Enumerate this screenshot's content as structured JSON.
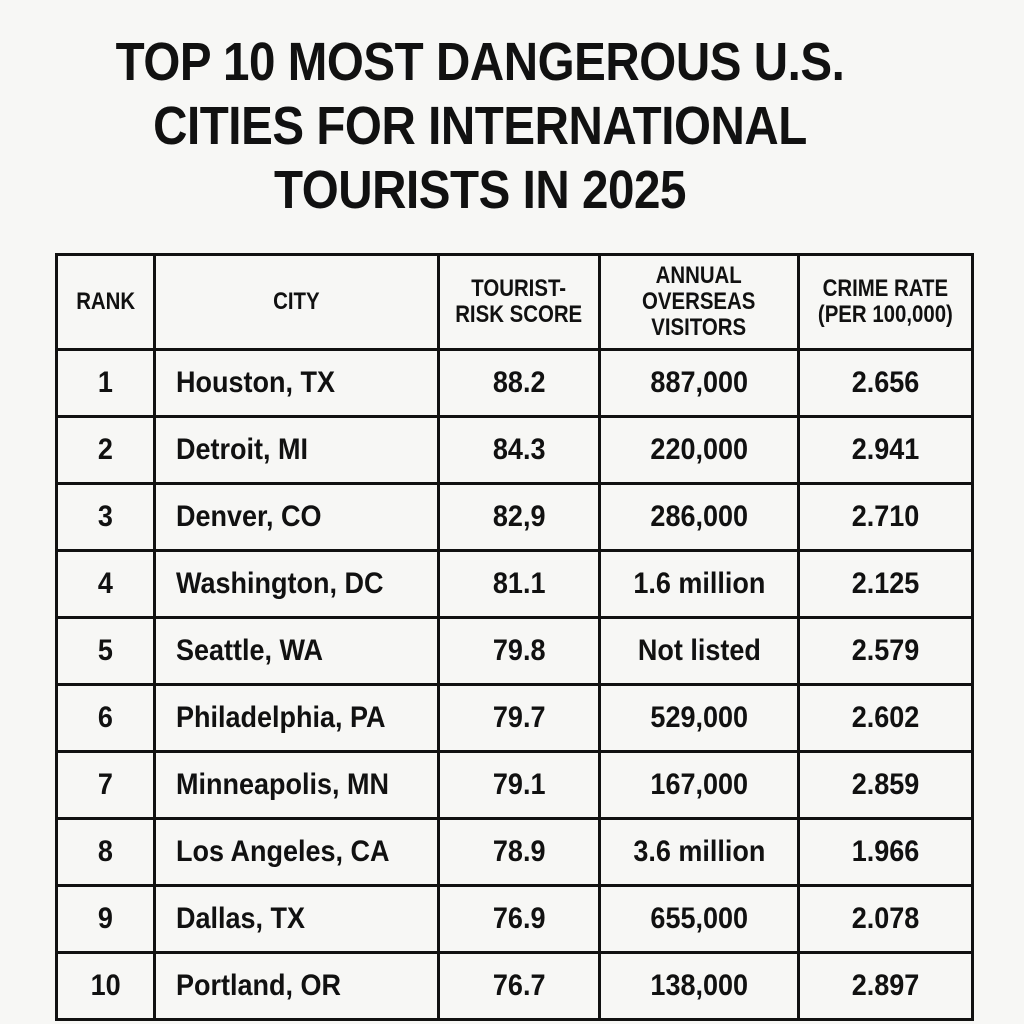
{
  "title": {
    "lines": [
      "TOP 10 MOST DANGEROUS U.S.",
      "CITIES FOR INTERNATIONAL",
      "TOURISTS IN 2025"
    ]
  },
  "table": {
    "headers": [
      {
        "lines": [
          "RANK"
        ]
      },
      {
        "lines": [
          "CITY"
        ]
      },
      {
        "lines": [
          "TOURIST-",
          "RISK SCORE"
        ]
      },
      {
        "lines": [
          "ANNUAL",
          "OVERSEAS",
          "VISITORS"
        ]
      },
      {
        "lines": [
          "CRIME RATE",
          "(PER 100,000)"
        ]
      }
    ],
    "rows": [
      {
        "rank": "1",
        "city": "Houston, TX",
        "score": "88.2",
        "visitors": "887,000",
        "crime": "2.656"
      },
      {
        "rank": "2",
        "city": "Detroit, MI",
        "score": "84.3",
        "visitors": "220,000",
        "crime": "2.941"
      },
      {
        "rank": "3",
        "city": "Denver, CO",
        "score": "82,9",
        "visitors": "286,000",
        "crime": "2.710"
      },
      {
        "rank": "4",
        "city": "Washington, DC",
        "score": "81.1",
        "visitors": "1.6 million",
        "crime": "2.125"
      },
      {
        "rank": "5",
        "city": "Seattle, WA",
        "score": "79.8",
        "visitors": "Not listed",
        "crime": "2.579"
      },
      {
        "rank": "6",
        "city": "Philadelphia, PA",
        "score": "79.7",
        "visitors": "529,000",
        "crime": "2.602"
      },
      {
        "rank": "7",
        "city": "Minneapolis, MN",
        "score": "79.1",
        "visitors": "167,000",
        "crime": "2.859"
      },
      {
        "rank": "8",
        "city": "Los Angeles, CA",
        "score": "78.9",
        "visitors": "3.6 million",
        "crime": "1.966"
      },
      {
        "rank": "9",
        "city": "Dallas, TX",
        "score": "76.9",
        "visitors": "655,000",
        "crime": "2.078"
      },
      {
        "rank": "10",
        "city": "Portland, OR",
        "score": "76.7",
        "visitors": "138,000",
        "crime": "2.897"
      }
    ]
  }
}
